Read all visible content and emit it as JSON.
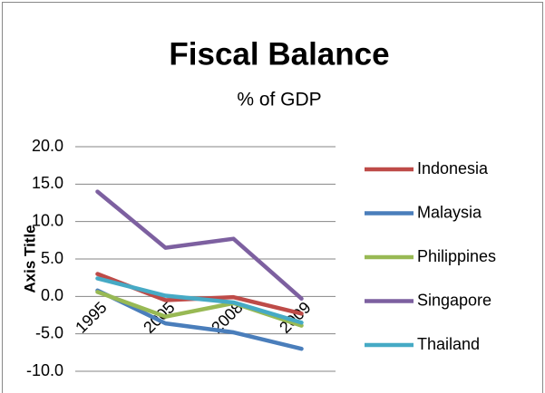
{
  "chart_data": {
    "type": "line",
    "title": "Fiscal Balance",
    "subtitle": "% of GDP",
    "y_label": "Axis Title",
    "categories": [
      "1995",
      "2005",
      "2008",
      "2009"
    ],
    "series": [
      {
        "name": "Indonesia",
        "color": "#be4b48",
        "values": [
          3.0,
          -0.5,
          -0.1,
          -2.3
        ]
      },
      {
        "name": "Malaysia",
        "color": "#4a7ebb",
        "values": [
          0.8,
          -3.6,
          -4.8,
          -7.0
        ]
      },
      {
        "name": "Philippines",
        "color": "#98b954",
        "values": [
          0.6,
          -2.7,
          -0.9,
          -3.9
        ]
      },
      {
        "name": "Singapore",
        "color": "#7d60a0",
        "values": [
          14.0,
          6.5,
          7.7,
          -0.3
        ]
      },
      {
        "name": "Thailand",
        "color": "#46aac5",
        "values": [
          2.4,
          0.1,
          -0.8,
          -3.5
        ]
      }
    ],
    "ylim": [
      -10,
      20
    ],
    "yticks": [
      {
        "value": -10,
        "label": "-10.0"
      },
      {
        "value": -5,
        "label": "-5.0"
      },
      {
        "value": 0,
        "label": "0.0"
      },
      {
        "value": 5,
        "label": "5.0"
      },
      {
        "value": 10,
        "label": "10.0"
      },
      {
        "value": 15,
        "label": "15.0"
      },
      {
        "value": 20,
        "label": "20.0"
      }
    ],
    "grid": true,
    "legend": "right"
  }
}
